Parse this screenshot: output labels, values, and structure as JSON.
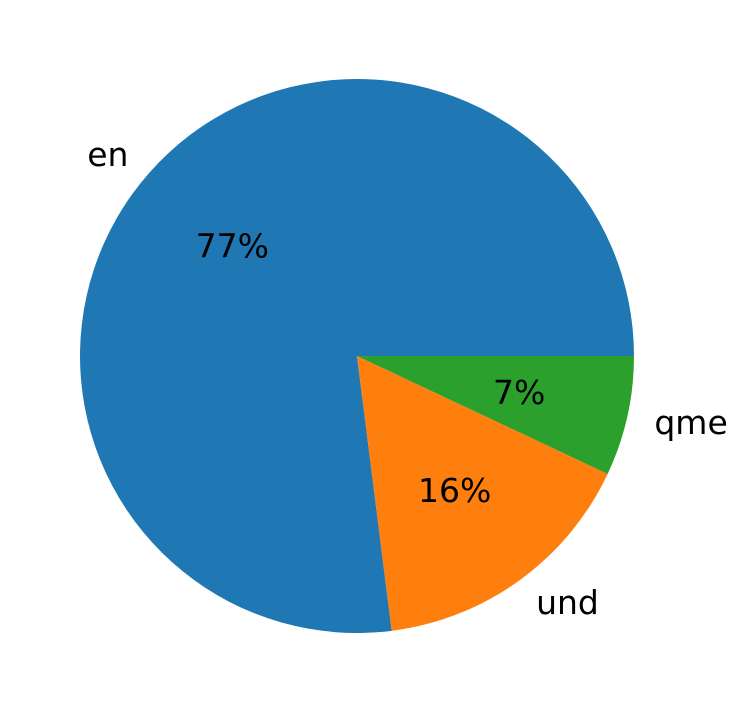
{
  "chart_data": {
    "type": "pie",
    "title": "",
    "labels": [
      "en",
      "und",
      "qme"
    ],
    "values": [
      77,
      16,
      7
    ],
    "percent_labels": [
      "77%",
      "16%",
      "7%"
    ],
    "colors": [
      "#1f77b4",
      "#ff7f0e",
      "#2ca02c"
    ],
    "start_angle_deg": 0,
    "direction": "counterclockwise",
    "legend": "none"
  }
}
